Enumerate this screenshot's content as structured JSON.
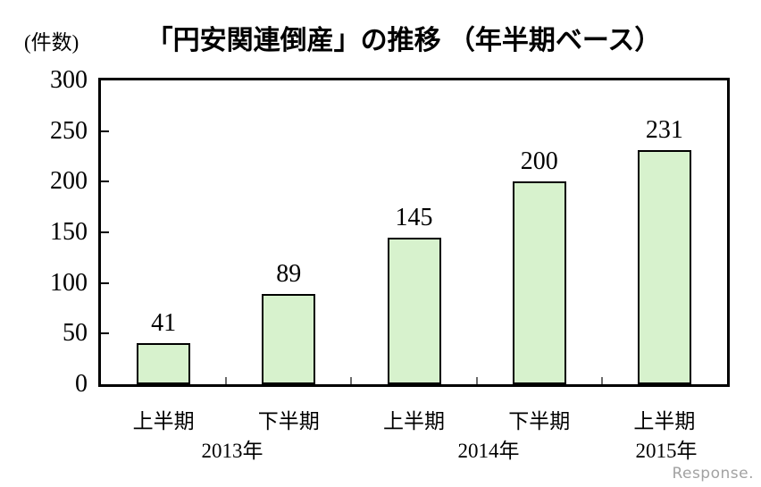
{
  "chart_data": {
    "type": "bar",
    "title": "「円安関連倒産」の推移 （年半期ベース）",
    "y_unit_label": "(件数)",
    "categories": [
      "上半期",
      "下半期",
      "上半期",
      "下半期",
      "上半期"
    ],
    "values": [
      41,
      89,
      145,
      200,
      231
    ],
    "year_labels": [
      "2013年",
      "2014年",
      "2015年"
    ],
    "yticks": [
      0,
      50,
      100,
      150,
      200,
      250,
      300
    ],
    "ylim": [
      0,
      300
    ],
    "grid": false,
    "legend": "none",
    "bar_fill": "#d7f2cd",
    "bar_border": "#000000"
  },
  "watermark": {
    "text": "Response."
  }
}
